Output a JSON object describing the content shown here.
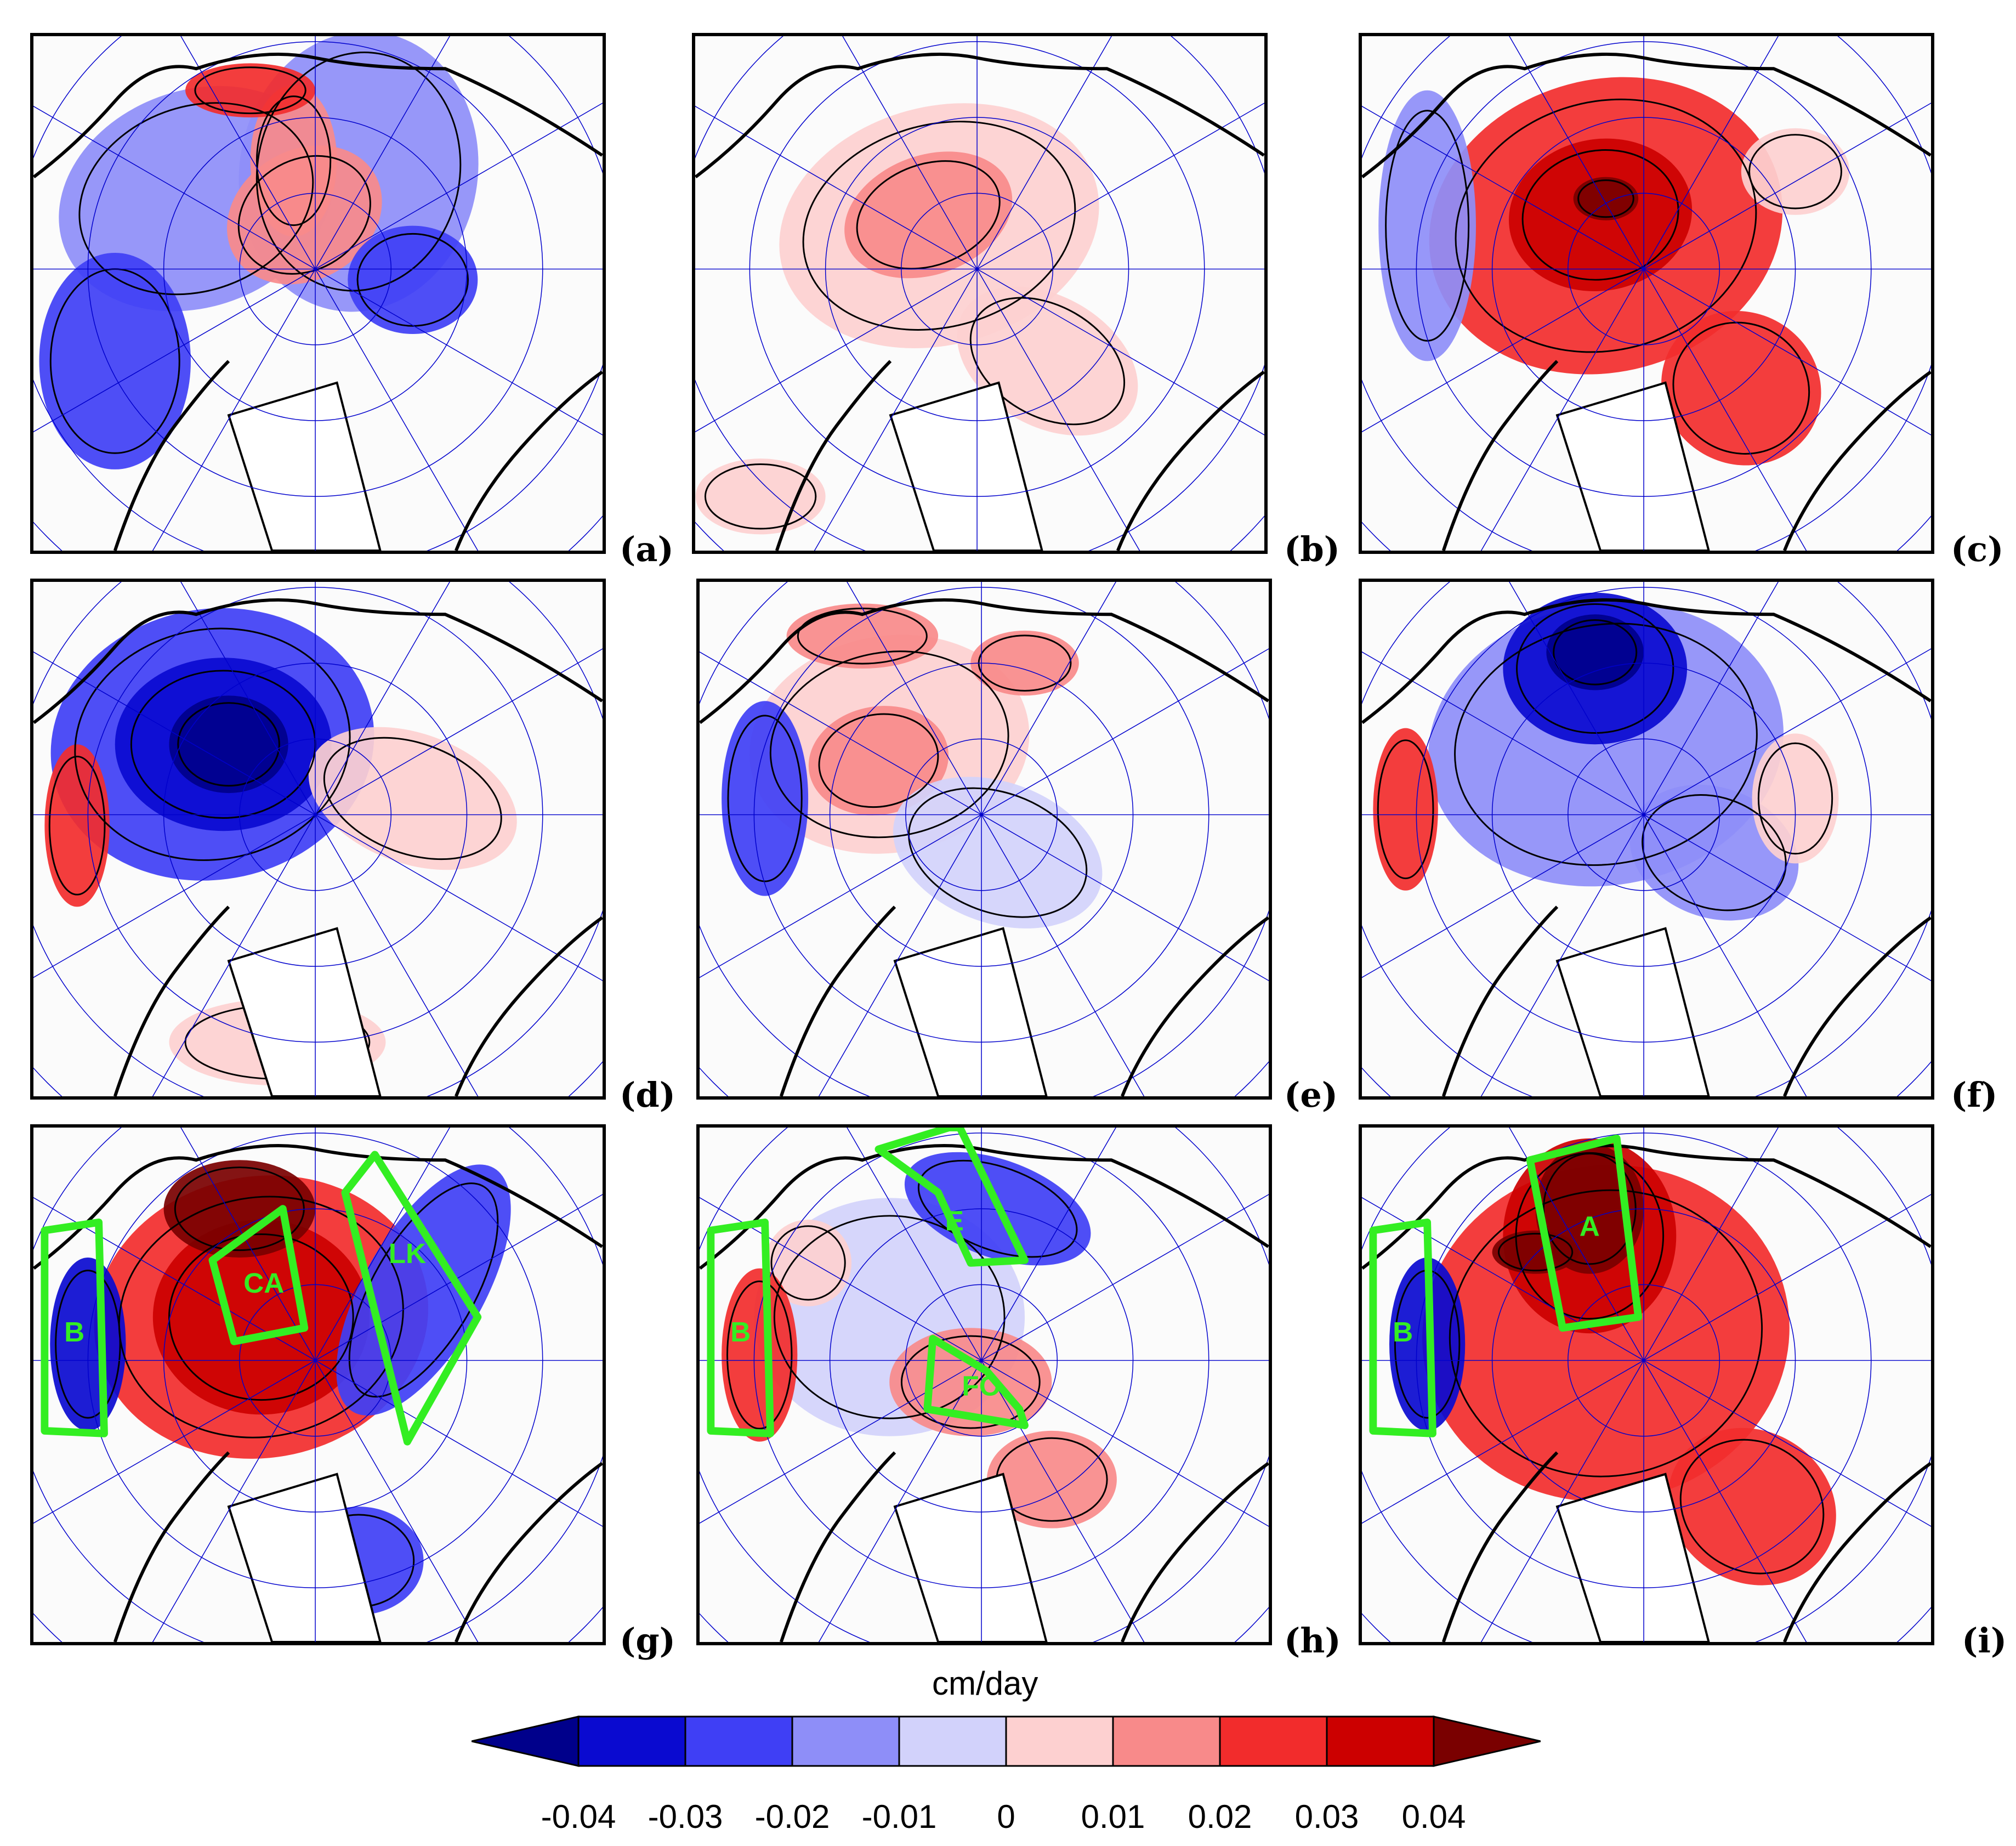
{
  "panels": [
    {
      "label": "(a)",
      "pattern": "mixed-blue",
      "regions": []
    },
    {
      "label": "(b)",
      "pattern": "light-red",
      "regions": []
    },
    {
      "label": "(c)",
      "pattern": "strong-red",
      "regions": []
    },
    {
      "label": "(d)",
      "pattern": "strong-blue",
      "regions": []
    },
    {
      "label": "(e)",
      "pattern": "mixed-red",
      "regions": []
    },
    {
      "label": "(f)",
      "pattern": "strong-blue-2",
      "regions": []
    },
    {
      "label": "(g)",
      "pattern": "red-center",
      "regions": [
        "B",
        "CA",
        "LK"
      ]
    },
    {
      "label": "(h)",
      "pattern": "mixed-green",
      "regions": [
        "B",
        "E",
        "FO"
      ]
    },
    {
      "label": "(i)",
      "pattern": "red-A",
      "regions": [
        "B",
        "A"
      ]
    }
  ],
  "colorbar": {
    "units": "cm/day",
    "ticks": [
      "-0.04",
      "-0.03",
      "-0.02",
      "-0.01",
      "0",
      "0.01",
      "0.02",
      "0.03",
      "0.04"
    ],
    "colors": [
      "#00008b",
      "#0a0ad0",
      "#3f3ff5",
      "#8e8ef8",
      "#d2d2fb",
      "#fdd0d0",
      "#f88a8a",
      "#f22c2c",
      "#cc0000",
      "#7a0000"
    ]
  },
  "colors": {
    "region_outline": "#33ee22",
    "grid": "#0000cc",
    "coast": "#000000"
  }
}
